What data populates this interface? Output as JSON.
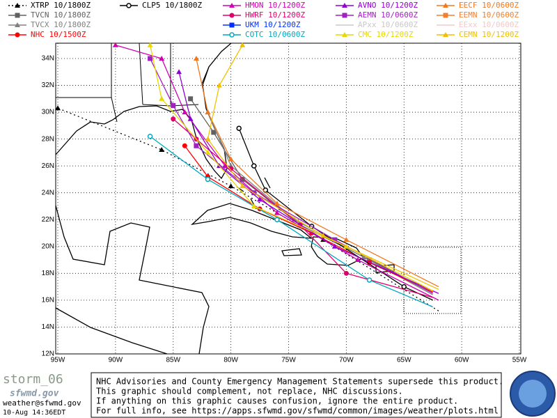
{
  "legend": [
    [
      {
        "label": "XTRP  10/1800Z",
        "color": "#000000",
        "marker": "tri",
        "dotted": true
      },
      {
        "label": "TVCN  10/1800Z",
        "color": "#606060",
        "marker": "sq"
      },
      {
        "label": "TVCX  10/1800Z",
        "color": "#808080",
        "marker": "tri"
      },
      {
        "label": "NHC  10/1500Z",
        "color": "#ff0000",
        "marker": "dot"
      }
    ],
    [
      {
        "label": "CLP5  10/1800Z",
        "color": "#000000",
        "marker": "ring"
      }
    ],
    [
      {
        "label": "HMON  10/1200Z",
        "color": "#d000b0",
        "marker": "tri"
      },
      {
        "label": "HWRF  10/1200Z",
        "color": "#e0006c",
        "marker": "dot"
      },
      {
        "label": "UKM   10/1200Z",
        "color": "#0030ff",
        "marker": "sq"
      },
      {
        "label": "COTC  10/0600Z",
        "color": "#00a8c0",
        "marker": "ring"
      }
    ],
    [
      {
        "label": "AVNO  10/1200Z",
        "color": "#9000d0",
        "marker": "tri"
      },
      {
        "label": "AEMN  10/0600Z",
        "color": "#a020c0",
        "marker": "sq"
      },
      {
        "label": "APxx  10/0600Z",
        "color": "#c8c8c8",
        "marker": "none"
      },
      {
        "label": "CMC   10/1200Z",
        "color": "#e8d800",
        "marker": "tri"
      }
    ],
    [
      {
        "label": "EECF  10/0600Z",
        "color": "#f07820",
        "marker": "tri"
      },
      {
        "label": "EEMN  10/0600Z",
        "color": "#f08030",
        "marker": "sq"
      },
      {
        "label": "EExx  10/0600Z",
        "color": "#f4c8c8",
        "marker": "none"
      },
      {
        "label": "CEMN  10/1200Z",
        "color": "#f0c000",
        "marker": "tri"
      }
    ]
  ],
  "lat_labels": [
    "34N",
    "32N",
    "30N",
    "28N",
    "26N",
    "24N",
    "22N",
    "20N",
    "18N",
    "16N",
    "14N",
    "12N"
  ],
  "lon_labels": [
    "95W",
    "90W",
    "85W",
    "80W",
    "75W",
    "70W",
    "65W",
    "60W",
    "55W"
  ],
  "footer": {
    "brand": "storm_06",
    "site": "sfwmd.gov",
    "email": "weather@sfwmd.gov",
    "timestamp": "10-Aug 14:36EDT",
    "notice": [
      "NHC Advisories and County Emergency Management Statements supersede this product.",
      "This graphic should complement, not replace, NHC discussions.",
      "If anything on this graphic causes confusion, ignore the entire product.",
      "For full info, see  https://apps.sfwmd.gov/sfwmd/common/images/weather/plots.html"
    ]
  }
}
